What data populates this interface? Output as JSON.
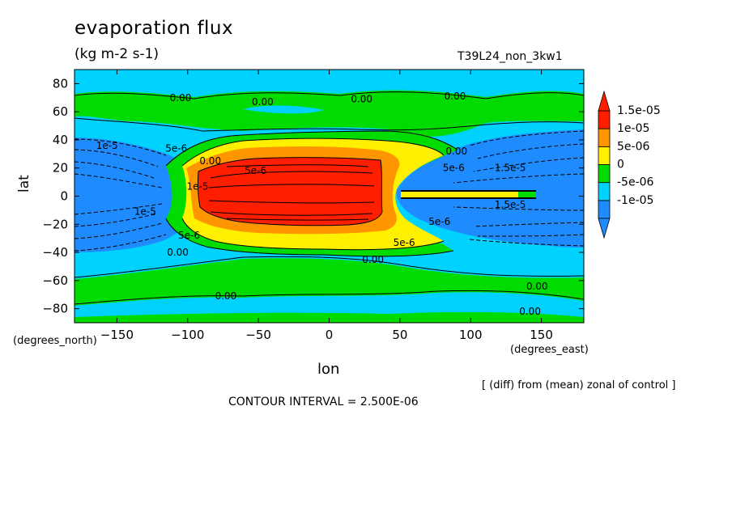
{
  "chart_data": {
    "type": "contour",
    "title": "evaporation flux",
    "units": "(kg m-2 s-1)",
    "run_label": "T39L24_non_3kw1",
    "xlabel": "lon",
    "ylabel": "lat",
    "x_unit_label": "(degrees_east)",
    "y_unit_label": "(degrees_north)",
    "xlim": [
      -180,
      180
    ],
    "ylim": [
      -90,
      90
    ],
    "x_ticks": [
      -150,
      -100,
      -50,
      0,
      50,
      100,
      150
    ],
    "x_tick_labels": [
      "−150",
      "−100",
      "−50",
      "0",
      "50",
      "100",
      "150"
    ],
    "y_ticks": [
      80,
      60,
      40,
      20,
      0,
      -20,
      -40,
      -60,
      -80
    ],
    "y_tick_labels": [
      "80",
      "60",
      "40",
      "20",
      "0",
      "−20",
      "−40",
      "−60",
      "−80"
    ],
    "contour_interval_text": "CONTOUR INTERVAL = 2.500E-06",
    "note": "[ (diff) from (mean) zonal of control ]",
    "legend": {
      "placement": "right",
      "labels": [
        "1.5e-05",
        "1e-05",
        "5e-06",
        "0",
        "-5e-06",
        "-1e-05"
      ],
      "colors": [
        "#1e8cff",
        "#00d2ff",
        "#00dc00",
        "#fff000",
        "#ff9600",
        "#ff1e00"
      ]
    },
    "contour_labels": [
      {
        "text": "0.00",
        "x": -105,
        "y": 70
      },
      {
        "text": "0.00",
        "x": -47,
        "y": 67
      },
      {
        "text": "0.00",
        "x": 23,
        "y": 69
      },
      {
        "text": "0.00",
        "x": 89,
        "y": 71
      },
      {
        "text": "0.00",
        "x": 90,
        "y": 32
      },
      {
        "text": "1e-5",
        "x": -157,
        "y": 36
      },
      {
        "text": "5e-6",
        "x": -108,
        "y": 34
      },
      {
        "text": "0.00",
        "x": -84,
        "y": 25
      },
      {
        "text": "5e-6",
        "x": -52,
        "y": 18
      },
      {
        "text": "1e-5",
        "x": -93,
        "y": 7
      },
      {
        "text": "1e-5",
        "x": -130,
        "y": -11
      },
      {
        "text": "5e-6",
        "x": -99,
        "y": -28
      },
      {
        "text": "0.00",
        "x": -107,
        "y": -40
      },
      {
        "text": "0.00",
        "x": 31,
        "y": -45
      },
      {
        "text": "0.00",
        "x": 147,
        "y": -64
      },
      {
        "text": "0.00",
        "x": -73,
        "y": -71
      },
      {
        "text": "0.00",
        "x": 142,
        "y": -82
      },
      {
        "text": "5e-6",
        "x": 53,
        "y": -33
      },
      {
        "text": "5e-6",
        "x": 88,
        "y": 20
      },
      {
        "text": "1.5e-5",
        "x": 128,
        "y": 20
      },
      {
        "text": "1.5e-5",
        "x": 128,
        "y": -6
      },
      {
        "text": "5e-6",
        "x": 78,
        "y": -18
      }
    ]
  }
}
